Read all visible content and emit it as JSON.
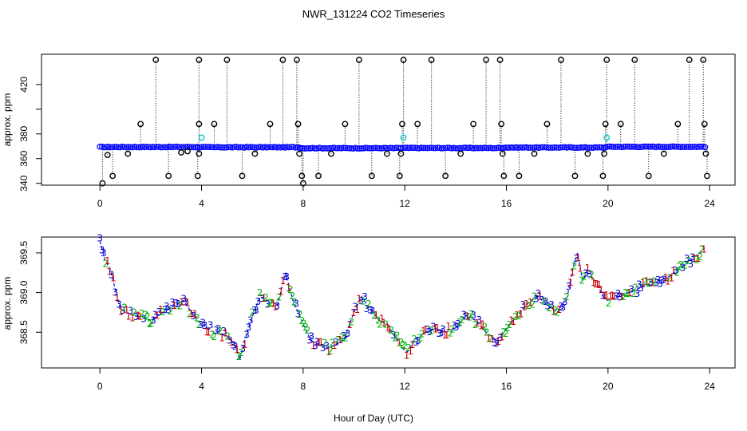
{
  "figure": {
    "title": "NWR_131224  CO2 Timeseries",
    "xlabel": "Hour of Day (UTC)"
  },
  "colors": {
    "raw_outlier": "#000000",
    "raw_main": "#0000ff",
    "raw_alt": "#00c8c8",
    "series_1": "#cc0000",
    "series_2": "#00b400",
    "series_3": "#0000cc",
    "avg_line": "#0000ff"
  },
  "chart_data": [
    {
      "type": "scatter",
      "name": "raw-timeseries",
      "xlabel": "",
      "ylabel": "approx. ppm",
      "xlim": [
        -2.3,
        25.0
      ],
      "ylim": [
        338.5,
        444.5
      ],
      "xticks": [
        0,
        4,
        8,
        12,
        16,
        20,
        24
      ],
      "yticks": [
        340,
        360,
        380,
        400,
        420
      ],
      "ytick_labels": [
        "340",
        "360",
        "380",
        "",
        "420"
      ],
      "baseline": {
        "segments": [
          {
            "x_start": 0.0,
            "x_end": 3.85,
            "value": 369.4
          },
          {
            "x_start": 3.85,
            "x_end": 7.9,
            "value": 369.2
          },
          {
            "x_start": 7.9,
            "x_end": 11.85,
            "value": 368.5
          },
          {
            "x_start": 11.85,
            "x_end": 15.9,
            "value": 368.6
          },
          {
            "x_start": 15.9,
            "x_end": 19.9,
            "value": 369.0
          },
          {
            "x_start": 19.9,
            "x_end": 23.85,
            "value": 369.6
          }
        ],
        "interval_hr": 0.08
      },
      "outliers": [
        {
          "x": 0.1,
          "y": 340.0
        },
        {
          "x": 0.3,
          "y": 363
        },
        {
          "x": 0.5,
          "y": 346
        },
        {
          "x": 1.1,
          "y": 364
        },
        {
          "x": 1.6,
          "y": 388
        },
        {
          "x": 2.2,
          "y": 440
        },
        {
          "x": 2.7,
          "y": 346
        },
        {
          "x": 3.2,
          "y": 365
        },
        {
          "x": 3.45,
          "y": 366
        },
        {
          "x": 3.85,
          "y": 346
        },
        {
          "x": 3.9,
          "y": 364
        },
        {
          "x": 3.9,
          "y": 388
        },
        {
          "x": 3.9,
          "y": 440
        },
        {
          "x": 4.5,
          "y": 388
        },
        {
          "x": 5.0,
          "y": 440
        },
        {
          "x": 5.6,
          "y": 346
        },
        {
          "x": 6.1,
          "y": 364
        },
        {
          "x": 6.7,
          "y": 388
        },
        {
          "x": 7.2,
          "y": 440
        },
        {
          "x": 7.75,
          "y": 440
        },
        {
          "x": 7.8,
          "y": 388
        },
        {
          "x": 7.85,
          "y": 364
        },
        {
          "x": 7.95,
          "y": 346
        },
        {
          "x": 8.0,
          "y": 340
        },
        {
          "x": 8.6,
          "y": 346
        },
        {
          "x": 9.1,
          "y": 364
        },
        {
          "x": 9.65,
          "y": 388
        },
        {
          "x": 10.2,
          "y": 440
        },
        {
          "x": 10.7,
          "y": 346
        },
        {
          "x": 11.3,
          "y": 364
        },
        {
          "x": 11.8,
          "y": 346
        },
        {
          "x": 11.85,
          "y": 364
        },
        {
          "x": 11.9,
          "y": 388
        },
        {
          "x": 11.95,
          "y": 440
        },
        {
          "x": 12.5,
          "y": 388
        },
        {
          "x": 13.05,
          "y": 440
        },
        {
          "x": 13.6,
          "y": 346
        },
        {
          "x": 14.2,
          "y": 364
        },
        {
          "x": 14.7,
          "y": 388
        },
        {
          "x": 15.2,
          "y": 440
        },
        {
          "x": 15.75,
          "y": 440
        },
        {
          "x": 15.8,
          "y": 388
        },
        {
          "x": 15.85,
          "y": 364
        },
        {
          "x": 15.9,
          "y": 346
        },
        {
          "x": 16.5,
          "y": 346
        },
        {
          "x": 17.1,
          "y": 364
        },
        {
          "x": 17.6,
          "y": 388
        },
        {
          "x": 18.15,
          "y": 440
        },
        {
          "x": 18.7,
          "y": 346
        },
        {
          "x": 19.2,
          "y": 364
        },
        {
          "x": 19.8,
          "y": 346
        },
        {
          "x": 19.85,
          "y": 364
        },
        {
          "x": 19.9,
          "y": 388
        },
        {
          "x": 19.95,
          "y": 440
        },
        {
          "x": 20.5,
          "y": 388
        },
        {
          "x": 21.05,
          "y": 440
        },
        {
          "x": 21.6,
          "y": 346
        },
        {
          "x": 22.2,
          "y": 364
        },
        {
          "x": 22.75,
          "y": 388
        },
        {
          "x": 23.2,
          "y": 440
        },
        {
          "x": 23.75,
          "y": 440
        },
        {
          "x": 23.8,
          "y": 388
        },
        {
          "x": 23.85,
          "y": 364
        },
        {
          "x": 23.9,
          "y": 346
        }
      ],
      "alt_points": [
        {
          "x": 4.0,
          "y": 377
        },
        {
          "x": 11.95,
          "y": 377
        },
        {
          "x": 19.95,
          "y": 377
        }
      ]
    },
    {
      "type": "line",
      "name": "averaged-timeseries",
      "xlabel": "Hour of Day (UTC)",
      "ylabel": "approx. ppm",
      "xlim": [
        -2.3,
        25.0
      ],
      "ylim": [
        368.05,
        369.7
      ],
      "xticks": [
        0,
        4,
        8,
        12,
        16,
        20,
        24
      ],
      "yticks": [
        368.5,
        369.0,
        369.5
      ],
      "ytick_labels": [
        "368.5",
        "369.0",
        "369.5"
      ],
      "marker_labels": [
        "1",
        "2",
        "3"
      ],
      "average": {
        "x": [
          0.0,
          0.2,
          0.4,
          0.6,
          0.8,
          1.0,
          1.5,
          2.0,
          2.5,
          3.0,
          3.3,
          3.6,
          4.0,
          4.5,
          5.0,
          5.3,
          5.5,
          5.7,
          6.0,
          6.3,
          6.6,
          7.0,
          7.3,
          7.6,
          8.0,
          8.3,
          8.6,
          9.0,
          9.3,
          9.6,
          10.0,
          10.3,
          10.6,
          11.0,
          11.3,
          11.6,
          11.9,
          12.1,
          12.4,
          12.8,
          13.2,
          13.6,
          14.0,
          14.4,
          14.8,
          15.2,
          15.6,
          16.0,
          16.4,
          16.8,
          17.2,
          17.6,
          18.0,
          18.4,
          18.6,
          18.8,
          19.0,
          19.2,
          19.5,
          19.8,
          20.0,
          20.4,
          20.8,
          21.2,
          21.6,
          22.0,
          22.4,
          22.8,
          23.2,
          23.6,
          23.8
        ],
        "y": [
          369.65,
          369.4,
          369.3,
          369.05,
          368.8,
          368.75,
          368.7,
          368.65,
          368.75,
          368.85,
          368.9,
          368.75,
          368.6,
          368.5,
          368.45,
          368.35,
          368.15,
          368.4,
          368.7,
          368.95,
          368.9,
          368.85,
          369.25,
          368.9,
          368.6,
          368.4,
          368.35,
          368.3,
          368.35,
          368.4,
          368.75,
          368.95,
          368.8,
          368.65,
          368.6,
          368.45,
          368.3,
          368.25,
          368.4,
          368.5,
          368.55,
          368.5,
          368.55,
          368.7,
          368.65,
          368.5,
          368.4,
          368.55,
          368.7,
          368.85,
          368.95,
          368.85,
          368.75,
          368.95,
          369.3,
          369.5,
          369.15,
          369.25,
          369.15,
          368.95,
          368.9,
          368.95,
          369.0,
          369.05,
          369.1,
          369.15,
          369.2,
          369.3,
          369.4,
          369.5,
          369.55
        ]
      },
      "series_count": 3,
      "interval_hr": 0.075
    }
  ]
}
